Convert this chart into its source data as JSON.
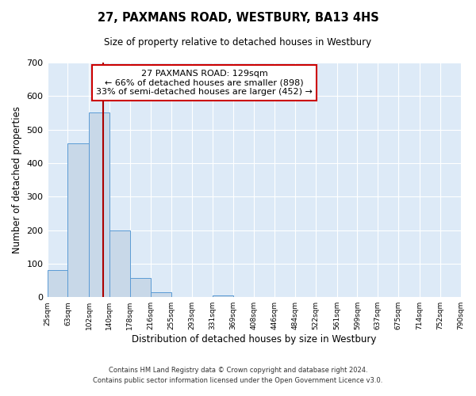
{
  "title": "27, PAXMANS ROAD, WESTBURY, BA13 4HS",
  "subtitle": "Size of property relative to detached houses in Westbury",
  "xlabel": "Distribution of detached houses by size in Westbury",
  "ylabel": "Number of detached properties",
  "bin_edges": [
    25,
    63,
    102,
    140,
    178,
    216,
    255,
    293,
    331,
    369,
    408,
    446,
    484,
    522,
    561,
    599,
    637,
    675,
    714,
    752,
    790
  ],
  "bar_heights": [
    80,
    460,
    550,
    200,
    57,
    15,
    0,
    0,
    5,
    0,
    0,
    0,
    0,
    0,
    0,
    0,
    0,
    0,
    0,
    0
  ],
  "bar_color": "#c8d8e8",
  "bar_edge_color": "#5b9bd5",
  "property_line_x": 129,
  "property_line_color": "#aa0000",
  "annotation_line1": "27 PAXMANS ROAD: 129sqm",
  "annotation_line2": "← 66% of detached houses are smaller (898)",
  "annotation_line3": "33% of semi-detached houses are larger (452) →",
  "annotation_box_edge_color": "#cc0000",
  "annotation_box_face_color": "#ffffff",
  "ylim": [
    0,
    700
  ],
  "footer_line1": "Contains HM Land Registry data © Crown copyright and database right 2024.",
  "footer_line2": "Contains public sector information licensed under the Open Government Licence v3.0.",
  "background_color": "#ddeaf7",
  "tick_labels": [
    "25sqm",
    "63sqm",
    "102sqm",
    "140sqm",
    "178sqm",
    "216sqm",
    "255sqm",
    "293sqm",
    "331sqm",
    "369sqm",
    "408sqm",
    "446sqm",
    "484sqm",
    "522sqm",
    "561sqm",
    "599sqm",
    "637sqm",
    "675sqm",
    "714sqm",
    "752sqm",
    "790sqm"
  ]
}
